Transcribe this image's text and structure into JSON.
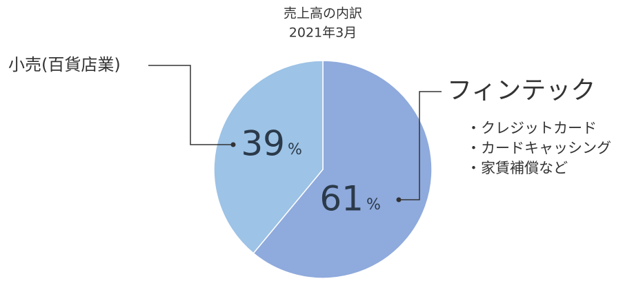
{
  "chart_data": {
    "type": "pie",
    "title": "売上高の内訳",
    "subtitle": "2021年3月",
    "categories": [
      "フィンテック",
      "小売(百貨店業)"
    ],
    "values": [
      61,
      39
    ],
    "value_unit": "%",
    "colors": [
      "#8faadc",
      "#9dc3e6"
    ],
    "category_details": [
      [
        "・クレジットカード",
        "・カードキャッシング",
        "・家賃補償など"
      ],
      []
    ]
  }
}
